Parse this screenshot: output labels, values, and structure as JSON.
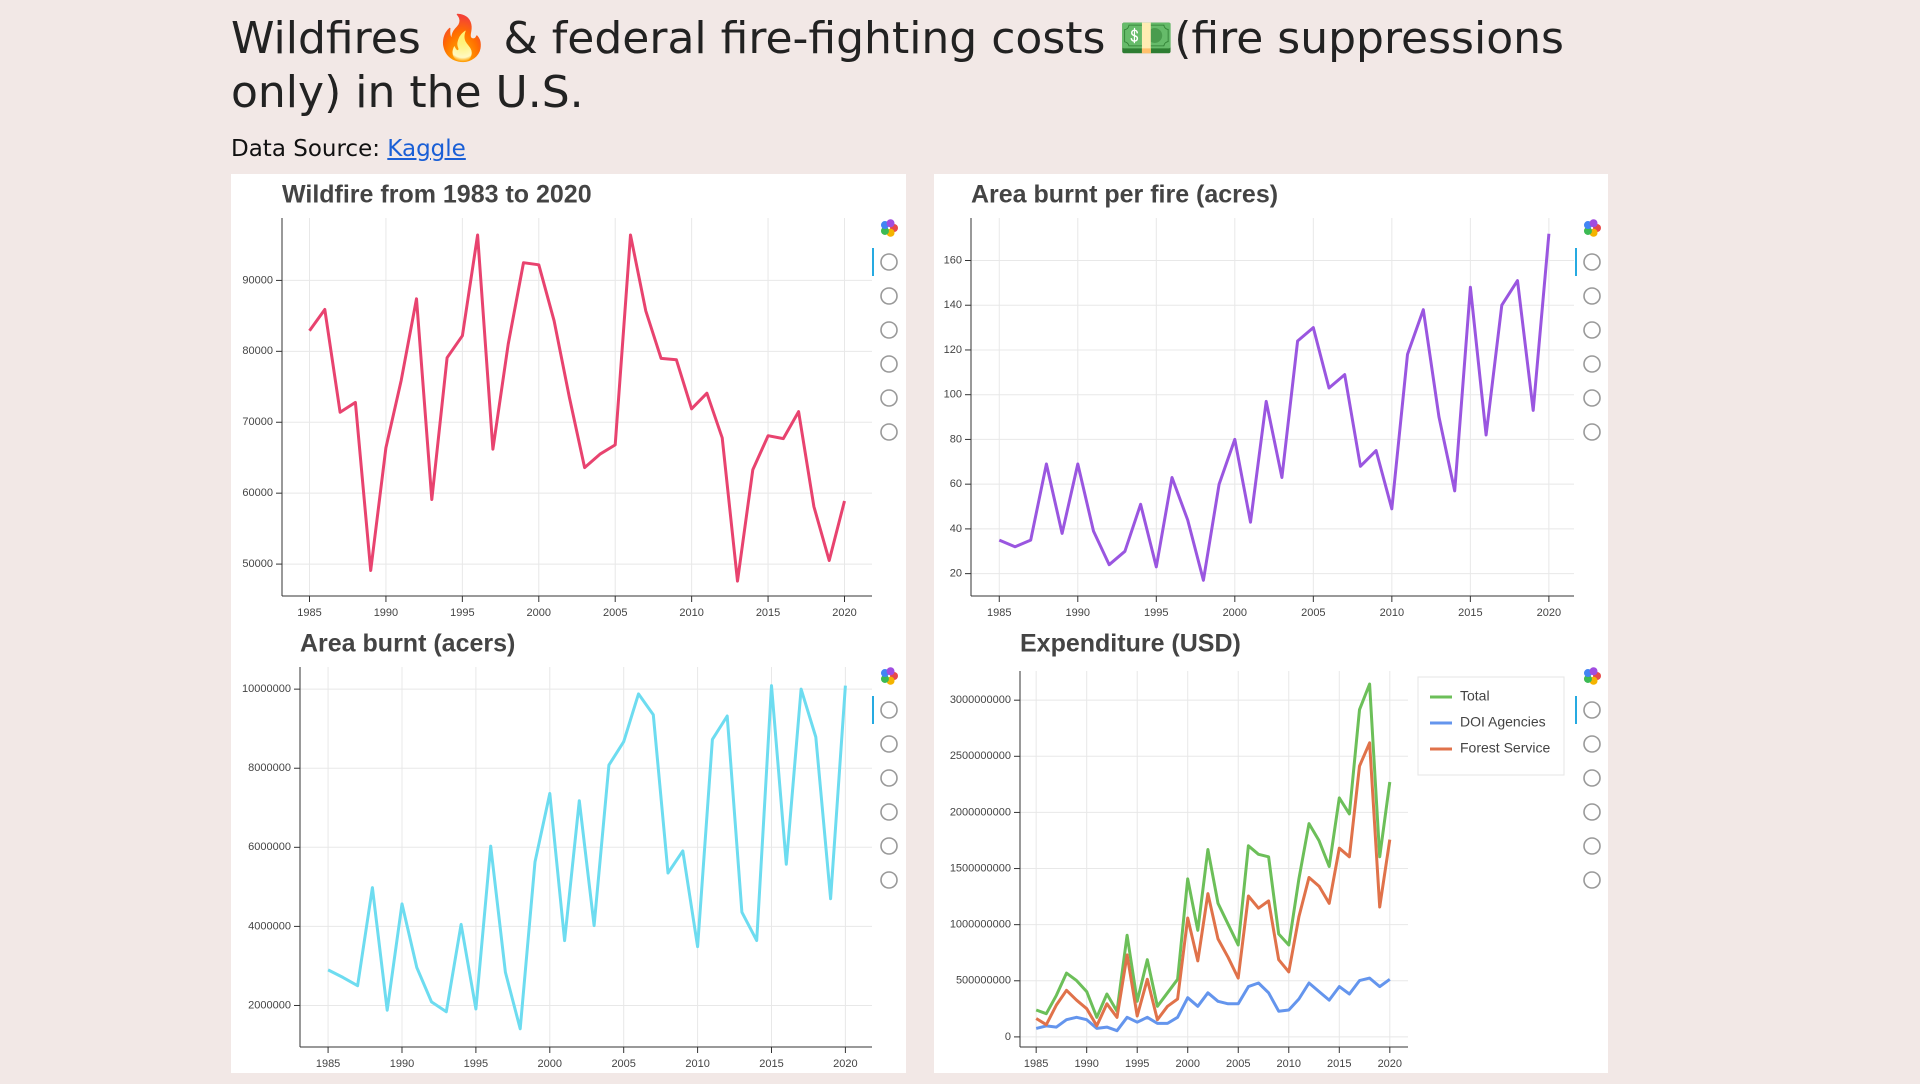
{
  "header": {
    "title": "Wildfires 🔥 & federal fire-fighting costs 💵(fire suppressions only) in the U.S.",
    "source_label": "Data Source:",
    "source_link": "Kaggle"
  },
  "chart_data": [
    {
      "type": "line",
      "title": "Wildfire from 1983 to 2020",
      "x": [
        1985,
        1986,
        1987,
        1988,
        1989,
        1990,
        1991,
        1992,
        1993,
        1994,
        1995,
        1996,
        1997,
        1998,
        1999,
        2000,
        2001,
        2002,
        2003,
        2004,
        2005,
        2006,
        2007,
        2008,
        2009,
        2010,
        2011,
        2012,
        2013,
        2014,
        2015,
        2016,
        2017,
        2018,
        2019,
        2020
      ],
      "values": [
        82900,
        85900,
        71400,
        72800,
        49100,
        66400,
        75900,
        87400,
        59100,
        79100,
        82200,
        96400,
        66200,
        81000,
        92500,
        92200,
        84300,
        73500,
        63600,
        65500,
        66800,
        96400,
        85700,
        79000,
        78800,
        71900,
        74100,
        67800,
        47600,
        63300,
        68100,
        67700,
        71500,
        58100,
        50500,
        58900
      ],
      "color": "#e8436f",
      "xlim": [
        1983.2,
        2021.8
      ],
      "ylim": [
        45500,
        98800
      ],
      "xticks": [
        1985,
        1990,
        1995,
        2000,
        2005,
        2010,
        2015,
        2020
      ],
      "yticks": [
        50000,
        60000,
        70000,
        80000,
        90000
      ],
      "grid": true
    },
    {
      "type": "line",
      "title": "Area burnt per fire (acres)",
      "x": [
        1985,
        1986,
        1987,
        1988,
        1989,
        1990,
        1991,
        1992,
        1993,
        1994,
        1995,
        1996,
        1997,
        1998,
        1999,
        2000,
        2001,
        2002,
        2003,
        2004,
        2005,
        2006,
        2007,
        2008,
        2009,
        2010,
        2011,
        2012,
        2013,
        2014,
        2015,
        2016,
        2017,
        2018,
        2019,
        2020
      ],
      "values": [
        35,
        32,
        35,
        69,
        38,
        69,
        39,
        24,
        30,
        51,
        23,
        63,
        44,
        17,
        60,
        80,
        43,
        97,
        63,
        124,
        130,
        103,
        109,
        68,
        75,
        49,
        118,
        138,
        90,
        57,
        148,
        82,
        140,
        151,
        93,
        172
      ],
      "color": "#9a56e0",
      "xlim": [
        1983.2,
        2021.6
      ],
      "ylim": [
        10,
        179
      ],
      "xticks": [
        1985,
        1990,
        1995,
        2000,
        2005,
        2010,
        2015,
        2020
      ],
      "yticks": [
        20,
        40,
        60,
        80,
        100,
        120,
        140,
        160
      ],
      "grid": true
    },
    {
      "type": "line",
      "title": "Area burnt (acers)",
      "x": [
        1985,
        1986,
        1987,
        1988,
        1989,
        1990,
        1991,
        1992,
        1993,
        1994,
        1995,
        1996,
        1997,
        1998,
        1999,
        2000,
        2001,
        2002,
        2003,
        2004,
        2005,
        2006,
        2007,
        2008,
        2009,
        2010,
        2011,
        2012,
        2013,
        2014,
        2015,
        2016,
        2017,
        2018,
        2019,
        2020
      ],
      "values": [
        2900000,
        2710000,
        2500000,
        4980000,
        1880000,
        4570000,
        2960000,
        2090000,
        1840000,
        4050000,
        1910000,
        6030000,
        2840000,
        1410000,
        5630000,
        7360000,
        3640000,
        7180000,
        4020000,
        8080000,
        8670000,
        9880000,
        9350000,
        5350000,
        5910000,
        3490000,
        8730000,
        9320000,
        4360000,
        3640000,
        10090000,
        5570000,
        10000000,
        8790000,
        4700000,
        10090000
      ],
      "color": "#6ddcf0",
      "xlim": [
        1983.1,
        2021.8
      ],
      "ylim": [
        950000,
        10560000
      ],
      "xticks": [
        1985,
        1990,
        1995,
        2000,
        2005,
        2010,
        2015,
        2020
      ],
      "yticks": [
        2000000,
        4000000,
        6000000,
        8000000,
        10000000
      ],
      "grid": true
    },
    {
      "type": "line",
      "title": "Expenditure (USD)",
      "x": [
        1985,
        1986,
        1987,
        1988,
        1989,
        1990,
        1991,
        1992,
        1993,
        1994,
        1995,
        1996,
        1997,
        1998,
        1999,
        2000,
        2001,
        2002,
        2003,
        2004,
        2005,
        2006,
        2007,
        2008,
        2009,
        2010,
        2011,
        2012,
        2013,
        2014,
        2015,
        2016,
        2017,
        2018,
        2019,
        2020
      ],
      "series": [
        {
          "name": "Total",
          "color": "#6cbf59",
          "values": [
            240000000,
            207000000,
            371000000,
            568000000,
            502000000,
            404000000,
            175000000,
            382000000,
            229000000,
            906000000,
            317000000,
            688000000,
            273000000,
            393000000,
            513000000,
            1408000000,
            950000000,
            1670000000,
            1190000000,
            1004000000,
            819000000,
            1703000000,
            1627000000,
            1605000000,
            917000000,
            819000000,
            1408000000,
            1900000000,
            1747000000,
            1518000000,
            2129000000,
            1987000000,
            2915000000,
            3144000000,
            1605000000,
            2271000000
          ]
        },
        {
          "name": "DOI Agencies",
          "color": "#6495ed",
          "values": [
            76000000,
            98000000,
            87000000,
            153000000,
            175000000,
            153000000,
            76000000,
            87000000,
            55000000,
            175000000,
            131000000,
            175000000,
            120000000,
            120000000,
            175000000,
            349000000,
            273000000,
            393000000,
            317000000,
            295000000,
            295000000,
            448000000,
            480000000,
            393000000,
            229000000,
            240000000,
            338000000,
            480000000,
            404000000,
            328000000,
            448000000,
            382000000,
            502000000,
            524000000,
            448000000,
            513000000
          ]
        },
        {
          "name": "Forest Service",
          "color": "#e0724a",
          "values": [
            164000000,
            109000000,
            284000000,
            415000000,
            327000000,
            251000000,
            99000000,
            295000000,
            174000000,
            731000000,
            186000000,
            513000000,
            153000000,
            273000000,
            338000000,
            1059000000,
            677000000,
            1277000000,
            873000000,
            709000000,
            524000000,
            1255000000,
            1147000000,
            1212000000,
            688000000,
            579000000,
            1070000000,
            1420000000,
            1343000000,
            1190000000,
            1681000000,
            1605000000,
            2413000000,
            2620000000,
            1157000000,
            1758000000
          ]
        }
      ],
      "xlim": [
        1983.4,
        2021.8
      ],
      "ylim": [
        -90000000,
        3260000000
      ],
      "xticks": [
        1985,
        1990,
        1995,
        2000,
        2005,
        2010,
        2015,
        2020
      ],
      "yticks": [
        0,
        500000000,
        1000000000,
        1500000000,
        2000000000,
        2500000000,
        3000000000
      ],
      "grid": true,
      "legend": "top_right"
    }
  ]
}
